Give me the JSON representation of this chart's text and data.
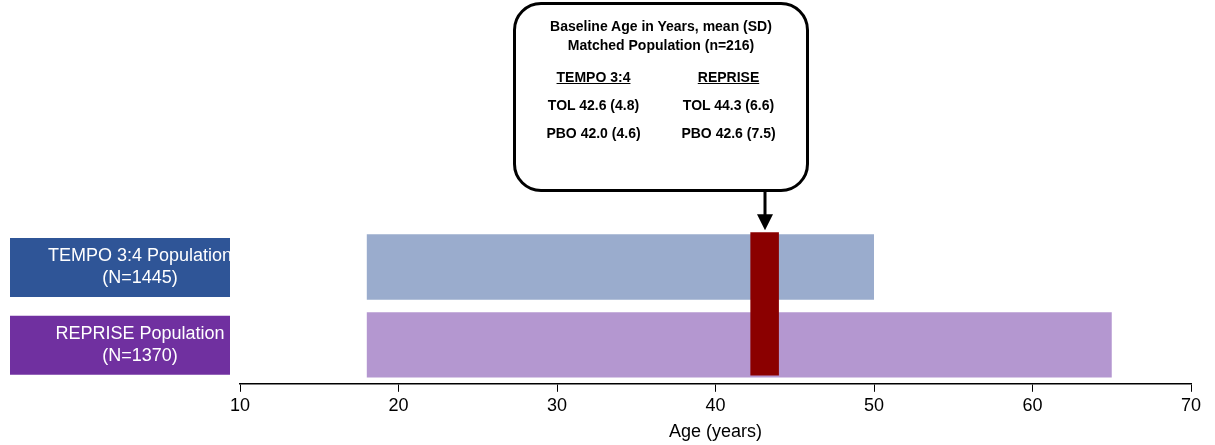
{
  "chart_data": {
    "type": "bar",
    "orientation": "horizontal",
    "xlabel": "Age (years)",
    "categories": [
      "TEMPO 3:4 Population (N=1445)",
      "REPRISE Population (N=1370)"
    ],
    "base": [
      18,
      18
    ],
    "values": [
      32,
      47
    ],
    "colors": [
      "#9aaccd",
      "#b497d0"
    ],
    "xlim": [
      10,
      70
    ],
    "xticks": [
      10,
      20,
      30,
      40,
      50,
      60,
      70
    ],
    "grid": false,
    "legend": false,
    "bands": [
      {
        "axis": "x",
        "from": 42.2,
        "to": 44,
        "color": "#8b0000"
      }
    ],
    "annotations": [
      "Baseline Age in Years, mean (SD)",
      "Matched Population (n=216)",
      "TEMPO 3:4",
      "REPRISE",
      "TOL 42.6 (4.8)",
      "TOL 44.3 (6.6)",
      "PBO 42.0 (4.6)",
      "PBO 42.6 (7.5)"
    ]
  }
}
